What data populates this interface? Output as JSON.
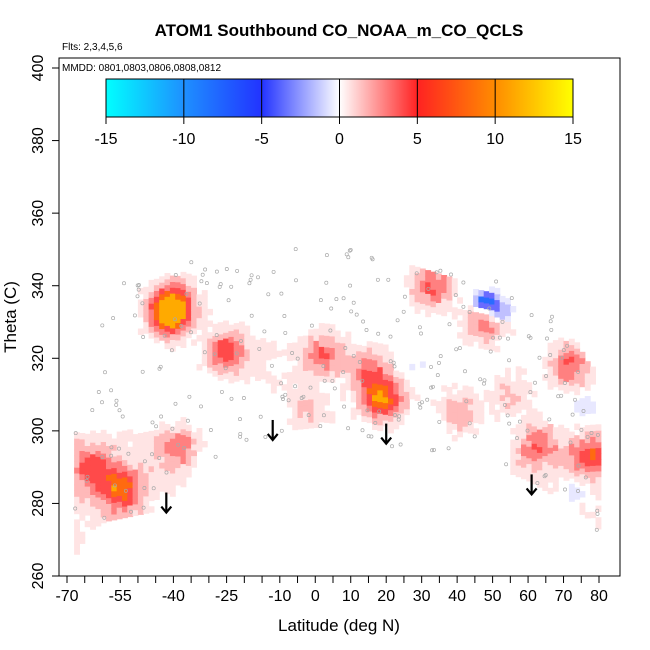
{
  "chart_data": {
    "type": "heatmap",
    "title": "ATOM1 Southbound CO_NOAA_m_CO_QCLS",
    "flights_note": "Flts: 2,3,4,5,6",
    "dates_note": "MMDD: 0801,0803,0806,0808,0812",
    "xlabel": "Latitude (deg N)",
    "ylabel": "Theta (C)",
    "xlim": [
      -70,
      85
    ],
    "ylim": [
      260,
      405
    ],
    "x_ticks": [
      -70,
      -55,
      -40,
      -25,
      -10,
      0,
      10,
      20,
      30,
      40,
      50,
      60,
      70,
      80
    ],
    "x_ticks_unlabeled": [
      -65,
      -60,
      -50,
      -45,
      -35,
      -30,
      -20,
      -15,
      -5,
      5,
      15,
      25,
      35,
      45,
      55,
      65,
      75
    ],
    "y_ticks": [
      260,
      280,
      300,
      320,
      340,
      360,
      380,
      400
    ],
    "colorbar": {
      "min": -15,
      "max": 15,
      "ticks": [
        -15,
        -10,
        -5,
        0,
        5,
        10,
        15
      ],
      "stops": [
        {
          "value": -15,
          "color": "#00ffff"
        },
        {
          "value": -10,
          "color": "#1e90ff"
        },
        {
          "value": -5,
          "color": "#2233ff"
        },
        {
          "value": 0,
          "color": "#ffffff"
        },
        {
          "value": 5,
          "color": "#ff2222"
        },
        {
          "value": 10,
          "color": "#ff8c00"
        },
        {
          "value": 15,
          "color": "#ffff00"
        }
      ]
    },
    "arrows_at_latitude": [
      -42,
      -12,
      20,
      61
    ],
    "grid": false,
    "hotspots": [
      {
        "lat": -41,
        "theta": 332,
        "value": 9
      },
      {
        "lat": -40,
        "theta": 336,
        "value": 6
      },
      {
        "lat": -25,
        "theta": 322,
        "value": 7
      },
      {
        "lat": 19,
        "theta": 309,
        "value": 9
      },
      {
        "lat": 15,
        "theta": 317,
        "value": 5
      },
      {
        "lat": 2,
        "theta": 321,
        "value": 6
      },
      {
        "lat": -55,
        "theta": 284,
        "value": 7
      },
      {
        "lat": -63,
        "theta": 290,
        "value": 5
      },
      {
        "lat": -38,
        "theta": 296,
        "value": 4
      },
      {
        "lat": 33,
        "theta": 340,
        "value": 6
      },
      {
        "lat": 63,
        "theta": 297,
        "value": 5
      },
      {
        "lat": 78,
        "theta": 294,
        "value": 6
      },
      {
        "lat": 72,
        "theta": 318,
        "value": 6
      },
      {
        "lat": 48,
        "theta": 330,
        "value": 5
      },
      {
        "lat": -2,
        "theta": 306,
        "value": 3
      },
      {
        "lat": -12,
        "theta": 318,
        "value": 3
      },
      {
        "lat": 40,
        "theta": 305,
        "value": 4
      },
      {
        "lat": 55,
        "theta": 310,
        "value": 3
      }
    ],
    "coldspots": [
      {
        "lat": 48,
        "theta": 336,
        "value": -13
      },
      {
        "lat": 52,
        "theta": 333,
        "value": -8
      },
      {
        "lat": 76,
        "theta": 307,
        "value": -4
      },
      {
        "lat": -11,
        "theta": 318,
        "value": -3
      },
      {
        "lat": 28,
        "theta": 318,
        "value": -2
      },
      {
        "lat": 34,
        "theta": 303,
        "value": -2
      },
      {
        "lat": -42,
        "theta": 279,
        "value": -3
      },
      {
        "lat": 73,
        "theta": 283,
        "value": -5
      }
    ],
    "color_levels": [
      {
        "value": 1.2,
        "color": "#ffe4e4"
      },
      {
        "value": 2.6,
        "color": "#ffb9b9"
      },
      {
        "value": 4.2,
        "color": "#ff8080"
      },
      {
        "value": 5.8,
        "color": "#ff4a4a"
      },
      {
        "value": 7.5,
        "color": "#ff6a10"
      },
      {
        "value": 9.0,
        "color": "#ffaa00"
      },
      {
        "value": -1.5,
        "color": "#e8e8ff"
      },
      {
        "value": -3.5,
        "color": "#c0c0ff"
      },
      {
        "value": -6.0,
        "color": "#6a6aff"
      },
      {
        "value": -9.0,
        "color": "#2a6cff"
      },
      {
        "value": -12.0,
        "color": "#10b8ff"
      }
    ]
  }
}
